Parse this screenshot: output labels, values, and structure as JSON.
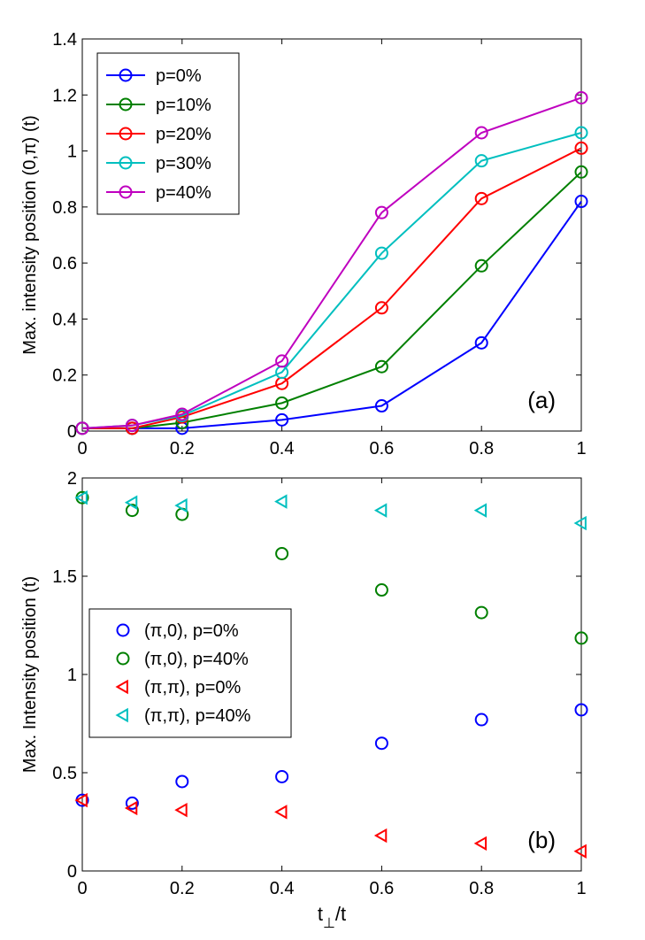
{
  "chart_data": [
    {
      "type": "line",
      "panel_label": "(a)",
      "ylabel": "Max. intensity position (0,π) (t)",
      "xlabel": "",
      "x": [
        0,
        0.1,
        0.2,
        0.4,
        0.6,
        0.8,
        1
      ],
      "xlim": [
        0,
        1
      ],
      "ylim": [
        0,
        1.4
      ],
      "xticks": [
        "0",
        "0.2",
        "0.4",
        "0.6",
        "0.8",
        "1"
      ],
      "yticks": [
        "0",
        "0.2",
        "0.4",
        "0.6",
        "0.8",
        "1",
        "1.2",
        "1.4"
      ],
      "legend_position": "top-left",
      "grid": false,
      "series": [
        {
          "name": "p=0%",
          "color": "#0000ff",
          "marker": "circle",
          "values": [
            0.01,
            0.01,
            0.01,
            0.04,
            0.09,
            0.315,
            0.82
          ]
        },
        {
          "name": "p=10%",
          "color": "#008000",
          "marker": "circle",
          "values": [
            0.01,
            0.01,
            0.03,
            0.1,
            0.23,
            0.59,
            0.925
          ]
        },
        {
          "name": "p=20%",
          "color": "#ff0000",
          "marker": "circle",
          "values": [
            0.01,
            0.01,
            0.05,
            0.17,
            0.44,
            0.83,
            1.01
          ]
        },
        {
          "name": "p=30%",
          "color": "#00bfbf",
          "marker": "circle",
          "values": [
            0.01,
            0.02,
            0.055,
            0.21,
            0.635,
            0.965,
            1.065
          ]
        },
        {
          "name": "p=40%",
          "color": "#bf00bf",
          "marker": "circle",
          "values": [
            0.01,
            0.02,
            0.06,
            0.25,
            0.78,
            1.065,
            1.19
          ]
        }
      ]
    },
    {
      "type": "scatter",
      "panel_label": "(b)",
      "ylabel": "Max. Intensity position (t)",
      "xlabel_main": "t",
      "xlabel_sub": "⊥",
      "xlabel_tail": "/t",
      "x": [
        0,
        0.1,
        0.2,
        0.4,
        0.6,
        0.8,
        1
      ],
      "xlim": [
        0,
        1
      ],
      "ylim": [
        0,
        2
      ],
      "xticks": [
        "0",
        "0.2",
        "0.4",
        "0.6",
        "0.8",
        "1"
      ],
      "yticks": [
        "0",
        "0.5",
        "1",
        "1.5",
        "2"
      ],
      "legend_position": "left",
      "grid": false,
      "series": [
        {
          "name": "(π,0), p=0%",
          "color": "#0000ff",
          "marker": "circle",
          "values": [
            0.36,
            0.345,
            0.455,
            0.48,
            0.65,
            0.77,
            0.82
          ]
        },
        {
          "name": "(π,0), p=40%",
          "color": "#008000",
          "marker": "circle",
          "values": [
            1.9,
            1.835,
            1.815,
            1.615,
            1.43,
            1.315,
            1.185
          ]
        },
        {
          "name": "(π,π), p=0%",
          "color": "#ff0000",
          "marker": "triangle-left",
          "values": [
            0.36,
            0.32,
            0.31,
            0.3,
            0.18,
            0.14,
            0.1
          ]
        },
        {
          "name": "(π,π), p=40%",
          "color": "#00bfbf",
          "marker": "triangle-left",
          "values": [
            1.9,
            1.875,
            1.86,
            1.88,
            1.835,
            1.835,
            1.77
          ]
        }
      ]
    }
  ]
}
